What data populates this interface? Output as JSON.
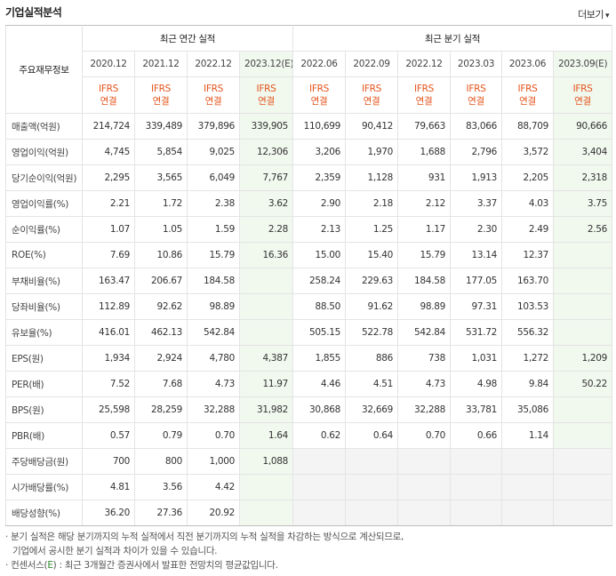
{
  "header": {
    "title": "기업실적분석",
    "more_label": "더보기",
    "more_caret": "▾"
  },
  "table": {
    "corner_label": "주요재무정보",
    "groups": {
      "annual": "최근 연간 실적",
      "quarterly": "최근 분기 실적"
    },
    "periods": [
      "2020.12",
      "2021.12",
      "2022.12",
      "2023.12(E)",
      "2022.06",
      "2022.09",
      "2022.12",
      "2023.03",
      "2023.06",
      "2023.09(E)"
    ],
    "ifrs_top": "IFRS",
    "ifrs_bottom": "연결",
    "rows": [
      {
        "label": "매출액(억원)",
        "values": [
          "214,724",
          "339,489",
          "379,896",
          "339,905",
          "110,699",
          "90,412",
          "79,663",
          "83,066",
          "88,709",
          "90,666"
        ]
      },
      {
        "label": "영업이익(억원)",
        "values": [
          "4,745",
          "5,854",
          "9,025",
          "12,306",
          "3,206",
          "1,970",
          "1,688",
          "2,796",
          "3,572",
          "3,404"
        ]
      },
      {
        "label": "당기순이익(억원)",
        "values": [
          "2,295",
          "3,565",
          "6,049",
          "7,767",
          "2,359",
          "1,128",
          "931",
          "1,913",
          "2,205",
          "2,318"
        ]
      },
      {
        "label": "영업이익률(%)",
        "values": [
          "2.21",
          "1.72",
          "2.38",
          "3.62",
          "2.90",
          "2.18",
          "2.12",
          "3.37",
          "4.03",
          "3.75"
        ]
      },
      {
        "label": "순이익률(%)",
        "values": [
          "1.07",
          "1.05",
          "1.59",
          "2.28",
          "2.13",
          "1.25",
          "1.17",
          "2.30",
          "2.49",
          "2.56"
        ]
      },
      {
        "label": "ROE(%)",
        "values": [
          "7.69",
          "10.86",
          "15.79",
          "16.36",
          "15.00",
          "15.40",
          "15.79",
          "13.14",
          "12.37",
          ""
        ]
      },
      {
        "label": "부채비율(%)",
        "values": [
          "163.47",
          "206.67",
          "184.58",
          "",
          "258.24",
          "229.63",
          "184.58",
          "177.05",
          "163.70",
          ""
        ]
      },
      {
        "label": "당좌비율(%)",
        "values": [
          "112.89",
          "92.62",
          "98.89",
          "",
          "88.50",
          "91.62",
          "98.89",
          "97.31",
          "103.53",
          ""
        ]
      },
      {
        "label": "유보율(%)",
        "values": [
          "416.01",
          "462.13",
          "542.84",
          "",
          "505.15",
          "522.78",
          "542.84",
          "531.72",
          "556.32",
          ""
        ]
      },
      {
        "label": "EPS(원)",
        "values": [
          "1,934",
          "2,924",
          "4,780",
          "4,387",
          "1,855",
          "886",
          "738",
          "1,031",
          "1,272",
          "1,209"
        ]
      },
      {
        "label": "PER(배)",
        "values": [
          "7.52",
          "7.68",
          "4.73",
          "11.97",
          "4.46",
          "4.51",
          "4.73",
          "4.98",
          "9.84",
          "50.22"
        ]
      },
      {
        "label": "BPS(원)",
        "values": [
          "25,598",
          "28,259",
          "32,288",
          "31,982",
          "30,868",
          "32,669",
          "32,288",
          "33,781",
          "35,086",
          ""
        ]
      },
      {
        "label": "PBR(배)",
        "values": [
          "0.57",
          "0.79",
          "0.70",
          "1.64",
          "0.62",
          "0.64",
          "0.70",
          "0.66",
          "1.14",
          ""
        ]
      },
      {
        "label": "주당배당금(원)",
        "values": [
          "700",
          "800",
          "1,000",
          "1,088",
          "",
          "",
          "",
          "",
          "",
          ""
        ]
      },
      {
        "label": "시가배당률(%)",
        "values": [
          "4.81",
          "3.56",
          "4.42",
          "",
          "",
          "",
          "",
          "",
          "",
          ""
        ]
      },
      {
        "label": "배당성향(%)",
        "values": [
          "36.20",
          "27.36",
          "20.92",
          "",
          "",
          "",
          "",
          "",
          "",
          ""
        ]
      }
    ]
  },
  "notes": {
    "line1": "· 분기 실적은 해당 분기까지의 누적 실적에서 직전 분기까지의 누적 실적을 차감하는 방식으로 계산되므로,",
    "line2": "기업에서 공시한 분기 실적과 차이가 있을 수 있습니다.",
    "line3_prefix": "· 컨센서스(",
    "line3_e": "E",
    "line3_suffix": ") : 최근 3개월간 증권사에서 발표한 전망치의 평균값입니다."
  }
}
